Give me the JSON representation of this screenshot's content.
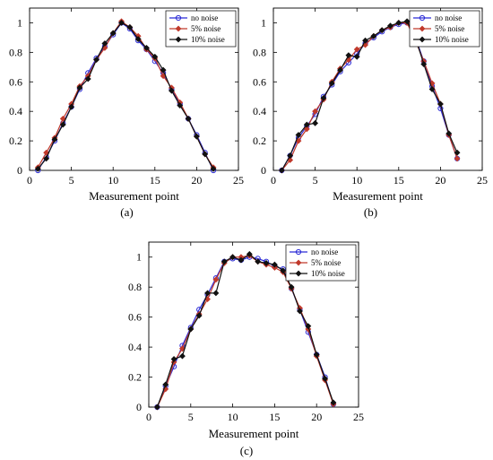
{
  "legend_colors": {
    "no noise": "#2b2bd6",
    "5% noise": "#c0392b",
    "10% noise": "#111111"
  },
  "chart_data": [
    {
      "type": "line",
      "panel_label": "(a)",
      "xlabel": "Measurement point",
      "ylabel": "",
      "xlim": [
        0,
        25
      ],
      "ylim": [
        0,
        1.1
      ],
      "xticks": [
        "0",
        "5",
        "10",
        "15",
        "20",
        "25"
      ],
      "yticks": [
        "0",
        "0.2",
        "0.4",
        "0.6",
        "0.8",
        "1"
      ],
      "grid": false,
      "legend_position": "top-right",
      "x": [
        1,
        2,
        3,
        4,
        5,
        6,
        7,
        8,
        9,
        10,
        11,
        12,
        13,
        14,
        15,
        16,
        17,
        18,
        19,
        20,
        21,
        22
      ],
      "series": [
        {
          "name": "no noise",
          "values": [
            0.0,
            0.09,
            0.2,
            0.32,
            0.43,
            0.55,
            0.66,
            0.76,
            0.84,
            0.92,
            1.0,
            0.96,
            0.88,
            0.82,
            0.74,
            0.66,
            0.55,
            0.45,
            0.35,
            0.24,
            0.12,
            0.0
          ]
        },
        {
          "name": "5% noise",
          "values": [
            0.02,
            0.12,
            0.22,
            0.35,
            0.45,
            0.57,
            0.64,
            0.75,
            0.83,
            0.93,
            1.01,
            0.97,
            0.91,
            0.82,
            0.76,
            0.64,
            0.56,
            0.46,
            0.35,
            0.23,
            0.11,
            0.02
          ]
        },
        {
          "name": "10% noise",
          "values": [
            0.01,
            0.08,
            0.21,
            0.31,
            0.43,
            0.56,
            0.62,
            0.75,
            0.86,
            0.93,
            1.0,
            0.97,
            0.89,
            0.83,
            0.77,
            0.68,
            0.54,
            0.44,
            0.35,
            0.23,
            0.11,
            0.01
          ]
        }
      ]
    },
    {
      "type": "line",
      "panel_label": "(b)",
      "xlabel": "Measurement point",
      "ylabel": "",
      "xlim": [
        0,
        25
      ],
      "ylim": [
        0,
        1.1
      ],
      "xticks": [
        "0",
        "5",
        "10",
        "15",
        "20",
        "25"
      ],
      "yticks": [
        "0",
        "0.2",
        "0.4",
        "0.6",
        "0.8",
        "1"
      ],
      "grid": false,
      "legend_position": "top-right",
      "x": [
        1,
        2,
        3,
        4,
        5,
        6,
        7,
        8,
        9,
        10,
        11,
        12,
        13,
        14,
        15,
        16,
        17,
        18,
        19,
        20,
        21,
        22
      ],
      "series": [
        {
          "name": "no noise",
          "values": [
            0.0,
            0.1,
            0.22,
            0.3,
            0.38,
            0.5,
            0.58,
            0.67,
            0.73,
            0.79,
            0.86,
            0.9,
            0.94,
            0.97,
            0.99,
            1.0,
            0.9,
            0.74,
            0.57,
            0.42,
            0.24,
            0.08
          ]
        },
        {
          "name": "5% noise",
          "values": [
            0.0,
            0.07,
            0.2,
            0.28,
            0.4,
            0.48,
            0.6,
            0.69,
            0.75,
            0.82,
            0.85,
            0.91,
            0.95,
            0.97,
            1.0,
            1.0,
            0.88,
            0.74,
            0.59,
            0.45,
            0.24,
            0.08
          ]
        },
        {
          "name": "10% noise",
          "values": [
            0.0,
            0.1,
            0.24,
            0.31,
            0.32,
            0.49,
            0.59,
            0.68,
            0.78,
            0.77,
            0.88,
            0.91,
            0.95,
            0.98,
            1.0,
            1.01,
            0.9,
            0.72,
            0.55,
            0.45,
            0.25,
            0.12
          ]
        }
      ]
    },
    {
      "type": "line",
      "panel_label": "(c)",
      "xlabel": "Measurement point",
      "ylabel": "",
      "xlim": [
        0,
        25
      ],
      "ylim": [
        0,
        1.1
      ],
      "xticks": [
        "0",
        "5",
        "10",
        "15",
        "20",
        "25"
      ],
      "yticks": [
        "0",
        "0.2",
        "0.4",
        "0.6",
        "0.8",
        "1"
      ],
      "grid": false,
      "legend_position": "top-right",
      "x": [
        1,
        2,
        3,
        4,
        5,
        6,
        7,
        8,
        9,
        10,
        11,
        12,
        13,
        14,
        15,
        16,
        17,
        18,
        19,
        20,
        21,
        22
      ],
      "series": [
        {
          "name": "no noise",
          "values": [
            0.0,
            0.14,
            0.27,
            0.41,
            0.53,
            0.65,
            0.75,
            0.86,
            0.97,
            0.99,
            0.98,
            1.0,
            0.99,
            0.97,
            0.94,
            0.92,
            0.79,
            0.65,
            0.5,
            0.35,
            0.2,
            0.02
          ]
        },
        {
          "name": "5% noise",
          "values": [
            0.0,
            0.12,
            0.3,
            0.39,
            0.52,
            0.62,
            0.72,
            0.85,
            0.96,
            1.0,
            1.0,
            1.01,
            0.97,
            0.95,
            0.93,
            0.9,
            0.79,
            0.66,
            0.52,
            0.34,
            0.18,
            0.02
          ]
        },
        {
          "name": "10% noise",
          "values": [
            0.0,
            0.15,
            0.32,
            0.34,
            0.52,
            0.61,
            0.76,
            0.76,
            0.97,
            1.0,
            0.98,
            1.02,
            0.97,
            0.96,
            0.95,
            0.91,
            0.8,
            0.64,
            0.54,
            0.35,
            0.19,
            0.03
          ]
        }
      ]
    }
  ]
}
